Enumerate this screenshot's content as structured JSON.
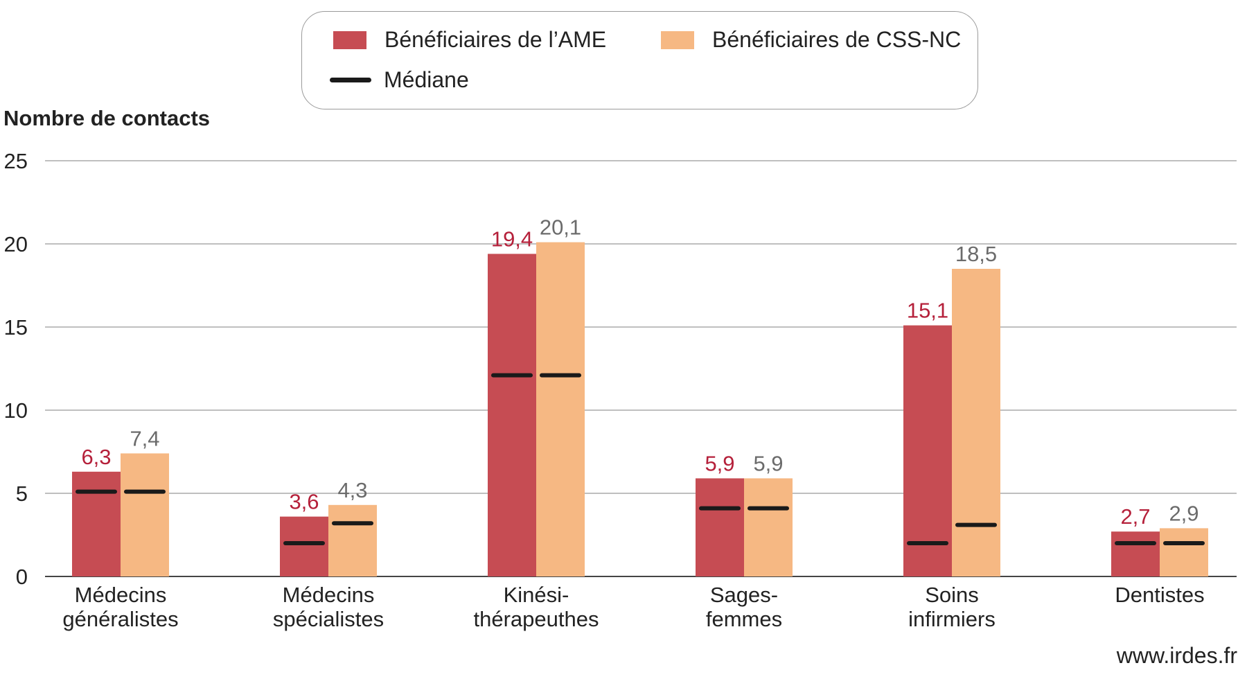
{
  "chart_data": {
    "type": "bar",
    "ylabel": "Nombre de contacts",
    "ylim": [
      0,
      25
    ],
    "yticks": [
      0,
      5,
      10,
      15,
      20,
      25
    ],
    "grid": true,
    "legend_position": "top",
    "categories": [
      [
        "Médecins",
        "généralistes"
      ],
      [
        "Médecins",
        "spécialistes"
      ],
      [
        "Kinési-",
        "thérapeuthes"
      ],
      [
        "Sages-",
        "femmes"
      ],
      [
        "Soins",
        "infirmiers"
      ],
      [
        "Dentistes"
      ]
    ],
    "series": [
      {
        "name": "Bénéficiaires de l’AME",
        "color": "#c64c53",
        "label_color": "#b5203a",
        "values": [
          6.3,
          3.6,
          19.4,
          5.9,
          15.1,
          2.7
        ],
        "labels": [
          "6,3",
          "3,6",
          "19,4",
          "5,9",
          "15,1",
          "2,7"
        ],
        "medians": [
          5.1,
          2.0,
          12.1,
          4.1,
          2.0,
          2.0
        ]
      },
      {
        "name": "Bénéficiaires de CSS-NC",
        "color": "#f6b883",
        "label_color": "#6b6b6b",
        "values": [
          7.4,
          4.3,
          20.1,
          5.9,
          18.5,
          2.9
        ],
        "labels": [
          "7,4",
          "4,3",
          "20,1",
          "5,9",
          "18,5",
          "2,9"
        ],
        "medians": [
          5.1,
          3.2,
          12.1,
          4.1,
          3.1,
          2.0
        ]
      }
    ],
    "median_label": "Médiane",
    "median_color": "#1a1a1a"
  },
  "source": "www.irdes.fr"
}
